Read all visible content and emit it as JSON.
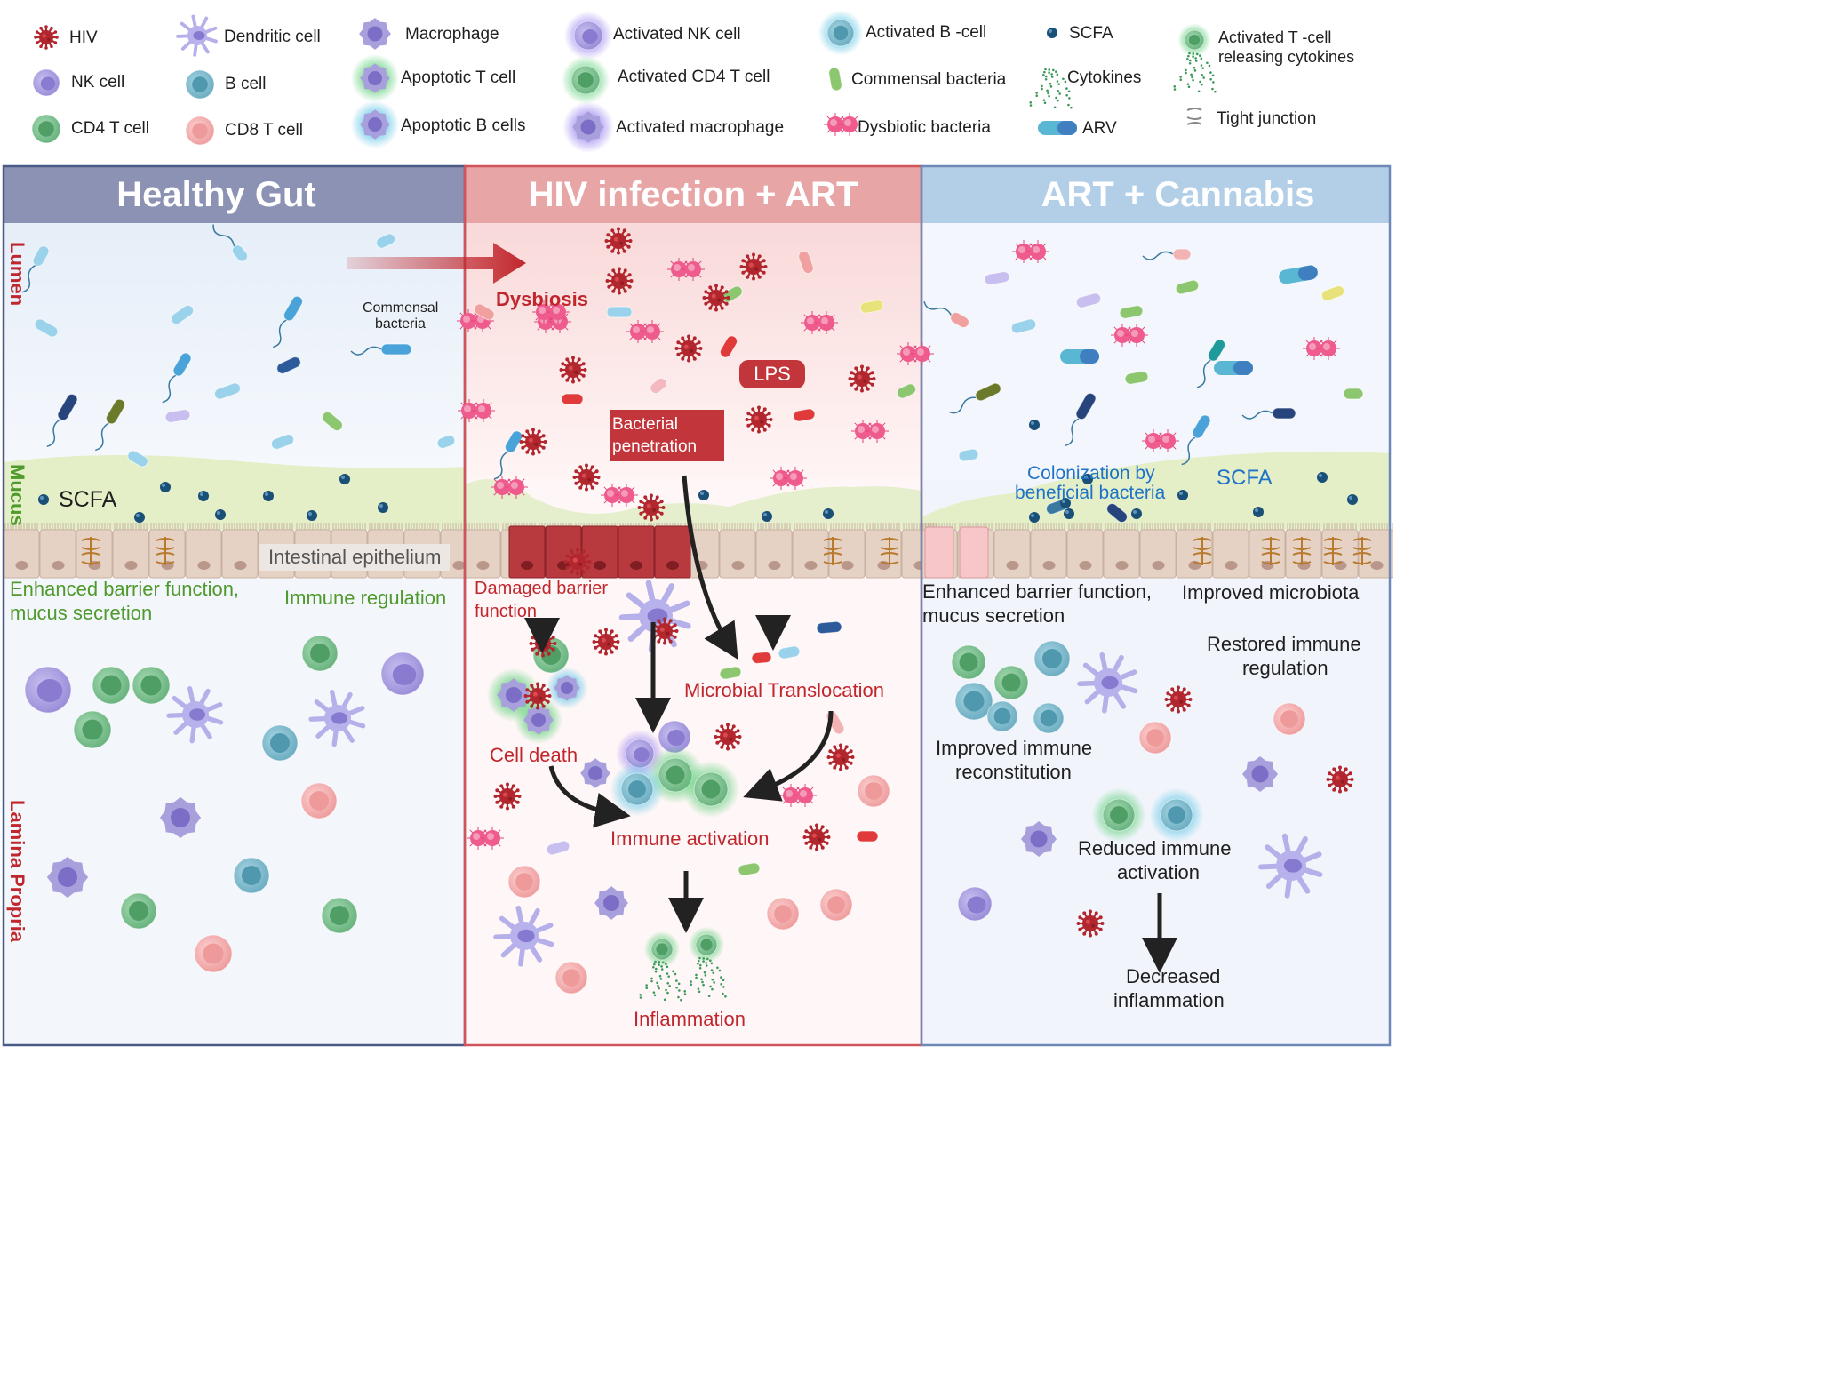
{
  "legend": [
    {
      "label": "HIV",
      "icon": "hiv-virus-icon"
    },
    {
      "label": "NK cell",
      "icon": "nk-cell-icon"
    },
    {
      "label": "CD4 T cell",
      "icon": "cd4-t-cell-icon"
    },
    {
      "label": "Dendritic cell",
      "icon": "dendritic-cell-icon"
    },
    {
      "label": "B cell",
      "icon": "b-cell-icon"
    },
    {
      "label": "CD8 T cell",
      "icon": "cd8-t-cell-icon"
    },
    {
      "label": "Macrophage",
      "icon": "macrophage-icon"
    },
    {
      "label": "Apoptotic T cell",
      "icon": "apoptotic-t-cell-icon"
    },
    {
      "label": "Apoptotic B cells",
      "icon": "apoptotic-b-cell-icon"
    },
    {
      "label": "Activated NK cell",
      "icon": "activated-nk-cell-icon"
    },
    {
      "label": "Activated CD4 T cell",
      "icon": "activated-cd4-t-cell-icon"
    },
    {
      "label": "Activated macrophage",
      "icon": "activated-macrophage-icon"
    },
    {
      "label": "Activated B -cell",
      "icon": "activated-b-cell-icon"
    },
    {
      "label": "Commensal bacteria",
      "icon": "commensal-bacteria-icon"
    },
    {
      "label": "Dysbiotic bacteria",
      "icon": "dysbiotic-bacteria-icon"
    },
    {
      "label": "SCFA",
      "icon": "scfa-icon"
    },
    {
      "label": "Cytokines",
      "icon": "cytokines-icon"
    },
    {
      "label": "ARV",
      "icon": "arv-capsule-icon"
    },
    {
      "label": "Activated T -cell",
      "icon": "activated-t-cell-releasing-cytokines-icon"
    },
    {
      "label": "releasing cytokines",
      "icon": ""
    },
    {
      "label": "Tight junction",
      "icon": "tight-junction-icon"
    }
  ],
  "panels": {
    "healthy": "Healthy Gut",
    "hiv": "HIV infection + ART",
    "cannabis": "ART + Cannabis"
  },
  "layers": {
    "lumen": "Lumen",
    "mucus": "Mucus",
    "lamina": "Lamina Propria"
  },
  "healthy": {
    "commensal_1": "Commensal",
    "commensal_2": "bacteria",
    "scfa": "SCFA",
    "epithelium": "Intestinal epithelium",
    "barrier_1": "Enhanced barrier function,",
    "barrier_2": "mucus secretion",
    "immune": "Immune regulation"
  },
  "hiv": {
    "dysbiosis": "Dysbiosis",
    "lps": "LPS",
    "penetration_1": "Bacterial",
    "penetration_2": "penetration",
    "damaged_1": "Damaged barrier",
    "damaged_2": "function",
    "translocation": "Microbial Translocation",
    "cell_death": "Cell death",
    "activation": "Immune activation",
    "inflammation": "Inflammation"
  },
  "cannabis": {
    "colonization_1": "Colonization by",
    "colonization_2": "beneficial bacteria",
    "scfa": "SCFA",
    "barrier_1": "Enhanced barrier function,",
    "barrier_2": "mucus secretion",
    "microbiota": "Improved microbiota",
    "restored_1": "Restored immune",
    "restored_2": "regulation",
    "reconstitution_1": "Improved immune",
    "reconstitution_2": "reconstitution",
    "reduced_1": "Reduced immune",
    "reduced_2": "activation",
    "decreased_1": "Decreased",
    "decreased_2": "inflammation"
  },
  "colors": {
    "healthy_header": "#8c92b3",
    "hiv_header": "#e8a5a6",
    "cannabis_header": "#b3cfe8",
    "hiv": "#b2262d",
    "nk": "#a99de0",
    "cd4": "#7cc08e",
    "bcell": "#7fb9cc",
    "cd8": "#f1b3b3",
    "mucus": "#e4efc7",
    "epithelium": "#e6d2c4",
    "scfa": "#1a4f78"
  }
}
